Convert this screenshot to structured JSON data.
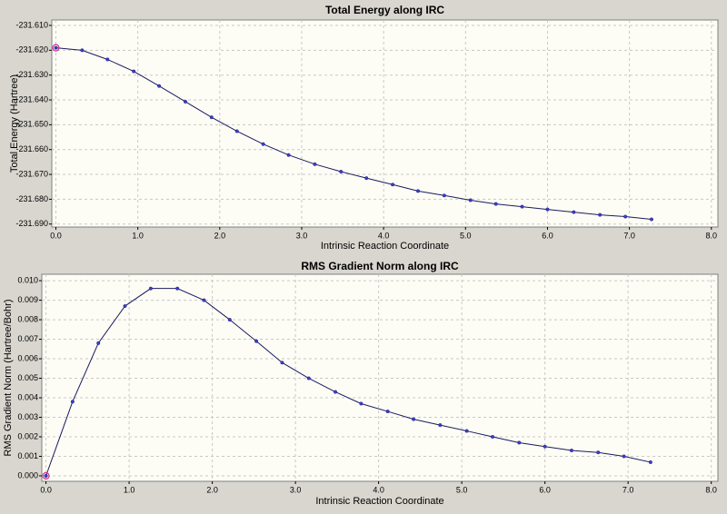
{
  "chart_data": [
    {
      "type": "line",
      "title": "Total Energy along IRC",
      "x_label": "Intrinsic Reaction Coordinate",
      "y_label": "Total Energy (Hartree)",
      "x": [
        0,
        0.32,
        0.63,
        0.95,
        1.26,
        1.58,
        1.9,
        2.21,
        2.53,
        2.84,
        3.16,
        3.48,
        3.79,
        4.11,
        4.42,
        4.74,
        5.06,
        5.37,
        5.69,
        6.0,
        6.32,
        6.64,
        6.95,
        7.27
      ],
      "values": [
        -231.619,
        -231.62,
        -231.6237,
        -231.6285,
        -231.6344,
        -231.6407,
        -231.647,
        -231.6526,
        -231.6578,
        -231.6622,
        -231.6659,
        -231.6689,
        -231.6715,
        -231.6741,
        -231.6767,
        -231.6785,
        -231.6804,
        -231.6819,
        -231.683,
        -231.6841,
        -231.6852,
        -231.6863,
        -231.687,
        -231.6881
      ],
      "line_color": "#1a1a5e",
      "marker_color": "#3b3bd6",
      "highlight_color": "#d0308a",
      "xlim": [
        -0.05,
        8.08
      ],
      "ylim": [
        -231.6912,
        -231.6078
      ],
      "xticks": [
        {
          "value": 0,
          "label": "0.0"
        },
        {
          "value": 1,
          "label": "1.0"
        },
        {
          "value": 2,
          "label": "2.0"
        },
        {
          "value": 3,
          "label": "3.0"
        },
        {
          "value": 4,
          "label": "4.0"
        },
        {
          "value": 5,
          "label": "5.0"
        },
        {
          "value": 6,
          "label": "6.0"
        },
        {
          "value": 7,
          "label": "7.0"
        },
        {
          "value": 8,
          "label": "8.0"
        }
      ],
      "yticks": [
        {
          "value": -231.61,
          "label": "-231.610"
        },
        {
          "value": -231.62,
          "label": "-231.620"
        },
        {
          "value": -231.63,
          "label": "-231.630"
        },
        {
          "value": -231.64,
          "label": "-231.640"
        },
        {
          "value": -231.65,
          "label": "-231.650"
        },
        {
          "value": -231.66,
          "label": "-231.660"
        },
        {
          "value": -231.67,
          "label": "-231.670"
        },
        {
          "value": -231.68,
          "label": "-231.680"
        },
        {
          "value": -231.69,
          "label": "-231.690"
        }
      ],
      "grid": true
    },
    {
      "type": "line",
      "title": "RMS Gradient Norm along IRC",
      "x_label": "Intrinsic Reaction Coordinate",
      "y_label": "RMS Gradient Norm (Hartree/Bohr)",
      "x": [
        0,
        0.32,
        0.63,
        0.95,
        1.26,
        1.58,
        1.9,
        2.21,
        2.53,
        2.84,
        3.16,
        3.48,
        3.79,
        4.11,
        4.42,
        4.74,
        5.06,
        5.37,
        5.69,
        6.0,
        6.32,
        6.64,
        6.95,
        7.27
      ],
      "values": [
        0,
        0.0038,
        0.0068,
        0.0087,
        0.0096,
        0.0096,
        0.009,
        0.008,
        0.0069,
        0.0058,
        0.005,
        0.0043,
        0.0037,
        0.0033,
        0.0029,
        0.0026,
        0.0023,
        0.002,
        0.0017,
        0.0015,
        0.0013,
        0.0012,
        0.001,
        0.0007
      ],
      "line_color": "#1a1a5e",
      "marker_color": "#3b3bd6",
      "highlight_color": "#d0308a",
      "xlim": [
        -0.05,
        8.08
      ],
      "ylim": [
        -0.00028,
        0.01033
      ],
      "xticks": [
        {
          "value": 0,
          "label": "0.0"
        },
        {
          "value": 1,
          "label": "1.0"
        },
        {
          "value": 2,
          "label": "2.0"
        },
        {
          "value": 3,
          "label": "3.0"
        },
        {
          "value": 4,
          "label": "4.0"
        },
        {
          "value": 5,
          "label": "5.0"
        },
        {
          "value": 6,
          "label": "6.0"
        },
        {
          "value": 7,
          "label": "7.0"
        },
        {
          "value": 8,
          "label": "8.0"
        }
      ],
      "yticks": [
        {
          "value": 0,
          "label": "0.000"
        },
        {
          "value": 0.001,
          "label": "0.001"
        },
        {
          "value": 0.002,
          "label": "0.002"
        },
        {
          "value": 0.003,
          "label": "0.003"
        },
        {
          "value": 0.004,
          "label": "0.004"
        },
        {
          "value": 0.005,
          "label": "0.005"
        },
        {
          "value": 0.006,
          "label": "0.006"
        },
        {
          "value": 0.007,
          "label": "0.007"
        },
        {
          "value": 0.008,
          "label": "0.008"
        },
        {
          "value": 0.009,
          "label": "0.009"
        },
        {
          "value": 0.01,
          "label": "0.010"
        }
      ],
      "grid": true
    }
  ]
}
